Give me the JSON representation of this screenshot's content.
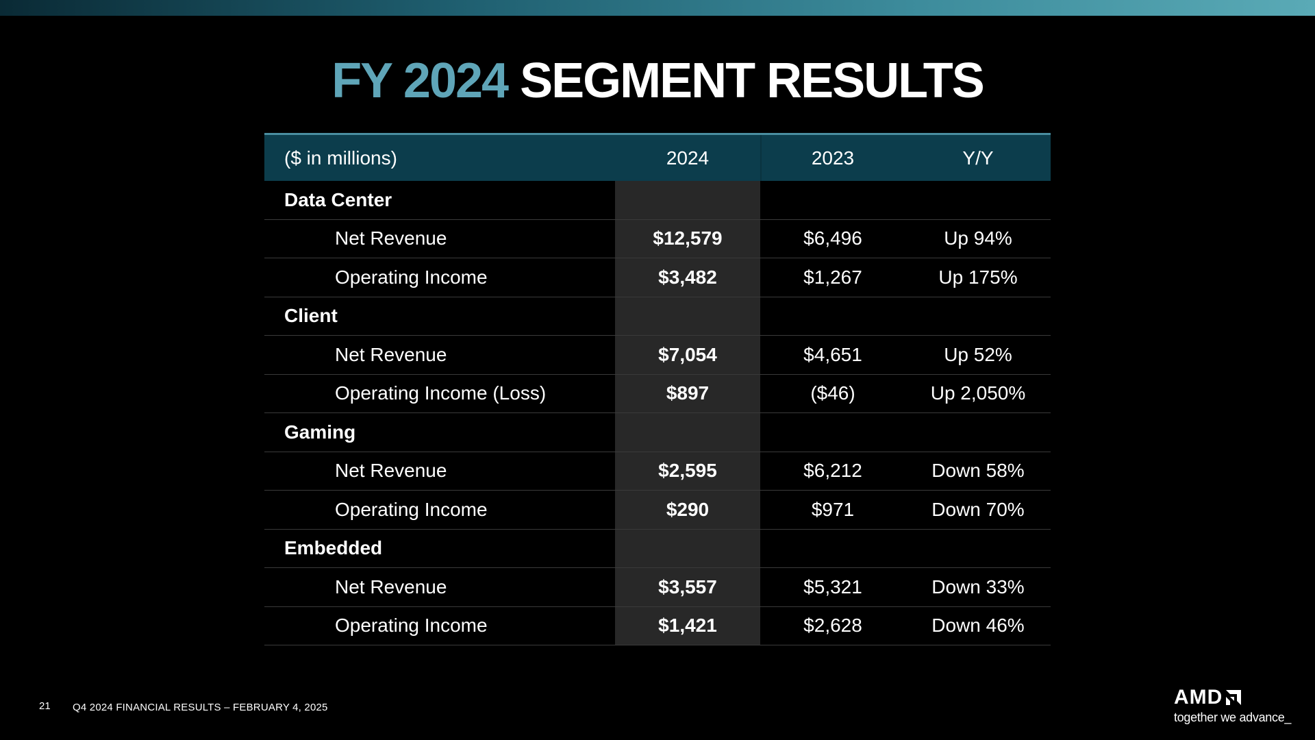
{
  "slide": {
    "title_accent": "FY 2024",
    "title_main": "SEGMENT RESULTS",
    "page_number": "21",
    "footer": "Q4 2024 FINANCIAL RESULTS – FEBRUARY 4, 2025",
    "brand": {
      "logo_text": "AMD",
      "tagline": "together we advance_",
      "accent_color": "#5fa5b8",
      "header_color": "#0c3d4c"
    }
  },
  "table": {
    "headers": [
      "($ in millions)",
      "2024",
      "2023",
      "Y/Y"
    ],
    "rows": [
      {
        "type": "section",
        "label": "Data Center"
      },
      {
        "type": "sub",
        "label": "Net Revenue",
        "y2024": "$12,579",
        "y2023": "$6,496",
        "yy": "Up 94%"
      },
      {
        "type": "sub",
        "label": "Operating Income",
        "y2024": "$3,482",
        "y2023": "$1,267",
        "yy": "Up 175%"
      },
      {
        "type": "section",
        "label": "Client"
      },
      {
        "type": "sub",
        "label": "Net Revenue",
        "y2024": "$7,054",
        "y2023": "$4,651",
        "yy": "Up 52%"
      },
      {
        "type": "sub",
        "label": "Operating Income (Loss)",
        "y2024": "$897",
        "y2023": "($46)",
        "yy": "Up 2,050%"
      },
      {
        "type": "section",
        "label": "Gaming"
      },
      {
        "type": "sub",
        "label": "Net Revenue",
        "y2024": "$2,595",
        "y2023": "$6,212",
        "yy": "Down 58%"
      },
      {
        "type": "sub",
        "label": "Operating Income",
        "y2024": "$290",
        "y2023": "$971",
        "yy": "Down 70%"
      },
      {
        "type": "section",
        "label": "Embedded"
      },
      {
        "type": "sub",
        "label": "Net Revenue",
        "y2024": "$3,557",
        "y2023": "$5,321",
        "yy": "Down 33%"
      },
      {
        "type": "sub",
        "label": "Operating Income",
        "y2024": "$1,421",
        "y2023": "$2,628",
        "yy": "Down 46%"
      }
    ]
  }
}
